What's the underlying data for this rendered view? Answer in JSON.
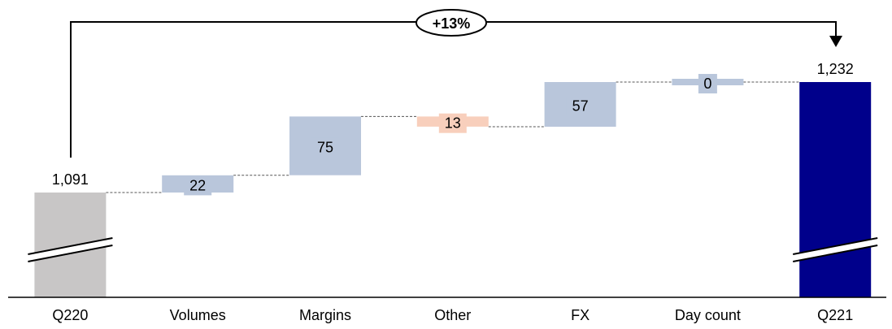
{
  "chart_data": {
    "type": "waterfall",
    "title": "",
    "xlabel": "",
    "ylabel": "",
    "y_axis_broken": true,
    "categories": [
      "Q220",
      "Volumes",
      "Margins",
      "Other",
      "FX",
      "Day count",
      "Q221"
    ],
    "bars": [
      {
        "category": "Q220",
        "kind": "total",
        "value": 1091,
        "label": "1,091"
      },
      {
        "category": "Volumes",
        "kind": "delta",
        "value": 22,
        "label": "22"
      },
      {
        "category": "Margins",
        "kind": "delta",
        "value": 75,
        "label": "75"
      },
      {
        "category": "Other",
        "kind": "delta",
        "value": -13,
        "label": "13"
      },
      {
        "category": "FX",
        "kind": "delta",
        "value": 57,
        "label": "57"
      },
      {
        "category": "Day count",
        "kind": "delta",
        "value": 0,
        "label": "0"
      },
      {
        "category": "Q221",
        "kind": "total",
        "value": 1232,
        "label": "1,232"
      }
    ],
    "growth_annotation": {
      "from": "Q220",
      "to": "Q221",
      "label": "+13%"
    },
    "colors": {
      "start_total": "#c8c6c6",
      "end_total": "#00008b",
      "increase": "#b9c6db",
      "decrease": "#f8cfbc",
      "axis": "#000000",
      "connector": "#555555"
    }
  }
}
